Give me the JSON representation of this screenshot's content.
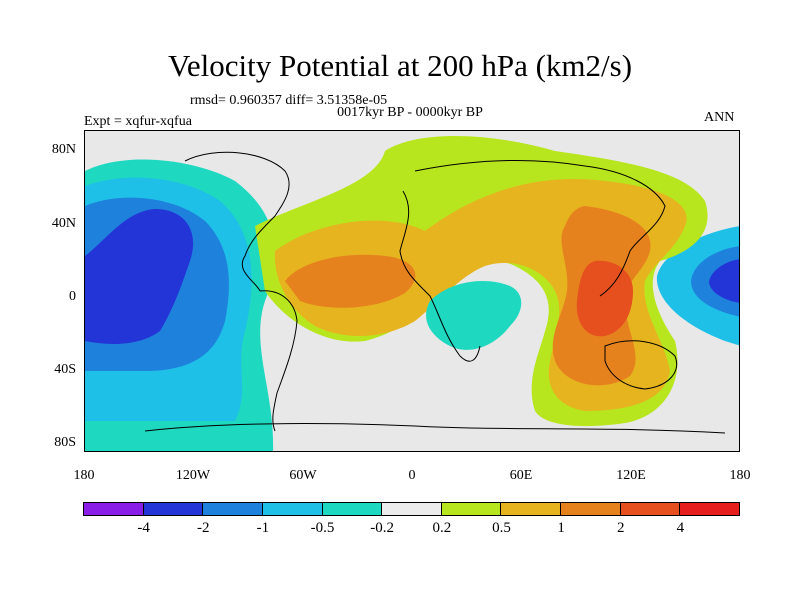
{
  "title": "Velocity Potential at 200 hPa (km2/s)",
  "stats": "rmsd= 0.960357 diff= 3.51358e-05",
  "subtitle": "0017kyr BP - 0000kyr BP",
  "left_label": "Expt = xqfur-xqfua",
  "right_label": "ANN",
  "lat_ticks": [
    "80N",
    "40N",
    "0",
    "40S",
    "80S"
  ],
  "lon_ticks": [
    "180",
    "120W",
    "60W",
    "0",
    "60E",
    "120E",
    "180"
  ],
  "colorbar": {
    "colors": [
      "#8a1ee6",
      "#2335d6",
      "#1e82dc",
      "#1ec0e8",
      "#1fd8c0",
      "#ececec",
      "#b8e61e",
      "#e6b41e",
      "#e6821e",
      "#e6501e",
      "#e61e1e"
    ],
    "labels": [
      "-4",
      "-2",
      "-1",
      "-0.5",
      "-0.2",
      "0.2",
      "0.5",
      "1",
      "2",
      "4"
    ]
  },
  "map_colors": {
    "ocean_bg": "#e8e8e8",
    "dark_blue": "#2335d6",
    "blue": "#1e82dc",
    "light_blue": "#1ec0e8",
    "teal": "#1fd8c0",
    "light_green": "#b8e61e",
    "orange_yellow": "#e6b41e",
    "orange": "#e6821e",
    "red_orange": "#e6501e"
  }
}
